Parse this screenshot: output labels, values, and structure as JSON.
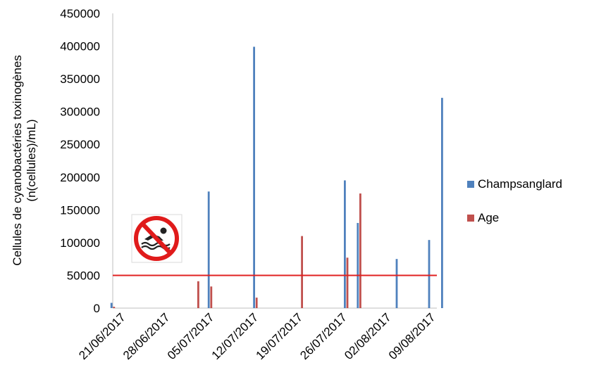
{
  "chart_data": {
    "type": "bar",
    "title": "",
    "xlabel": "",
    "ylabel": "Cellules de cyanobactéries toxinogènes (n(cellules)/mL)",
    "ylabel_lines": [
      "Cellules de cyanobactéries toxinogènes",
      "(n(cellules)/mL)"
    ],
    "ylim": [
      0,
      450000
    ],
    "y_ticks": [
      "0",
      "50000",
      "100000",
      "150000",
      "200000",
      "250000",
      "300000",
      "350000",
      "400000",
      "450000"
    ],
    "x_tick_labels": [
      "21/06/2017",
      "28/06/2017",
      "05/07/2017",
      "12/07/2017",
      "19/07/2017",
      "26/07/2017",
      "02/08/2017",
      "09/08/2017"
    ],
    "x_start": "2017-06-21",
    "x_end": "2017-08-10",
    "threshold": {
      "value": 50000,
      "color": "#e02020"
    },
    "series": [
      {
        "name": "Champsanglard",
        "color": "#4f81bd",
        "points": [
          {
            "x": "2017-06-21",
            "y": 8000
          },
          {
            "x": "2017-07-06",
            "y": 178000
          },
          {
            "x": "2017-07-13",
            "y": 399000
          },
          {
            "x": "2017-07-27",
            "y": 195000
          },
          {
            "x": "2017-07-29",
            "y": 130000
          },
          {
            "x": "2017-08-04",
            "y": 75000
          },
          {
            "x": "2017-08-09",
            "y": 104000
          },
          {
            "x": "2017-08-11",
            "y": 321000
          }
        ]
      },
      {
        "name": "Age",
        "color": "#c0504d",
        "points": [
          {
            "x": "2017-06-21",
            "y": 2000
          },
          {
            "x": "2017-07-04",
            "y": 41000
          },
          {
            "x": "2017-07-06",
            "y": 33000
          },
          {
            "x": "2017-07-13",
            "y": 16000
          },
          {
            "x": "2017-07-20",
            "y": 110000
          },
          {
            "x": "2017-07-27",
            "y": 77000
          },
          {
            "x": "2017-07-29",
            "y": 175000
          }
        ]
      }
    ],
    "grid": false,
    "legend_position": "right"
  },
  "icon": {
    "name": "no-swimming-icon"
  }
}
